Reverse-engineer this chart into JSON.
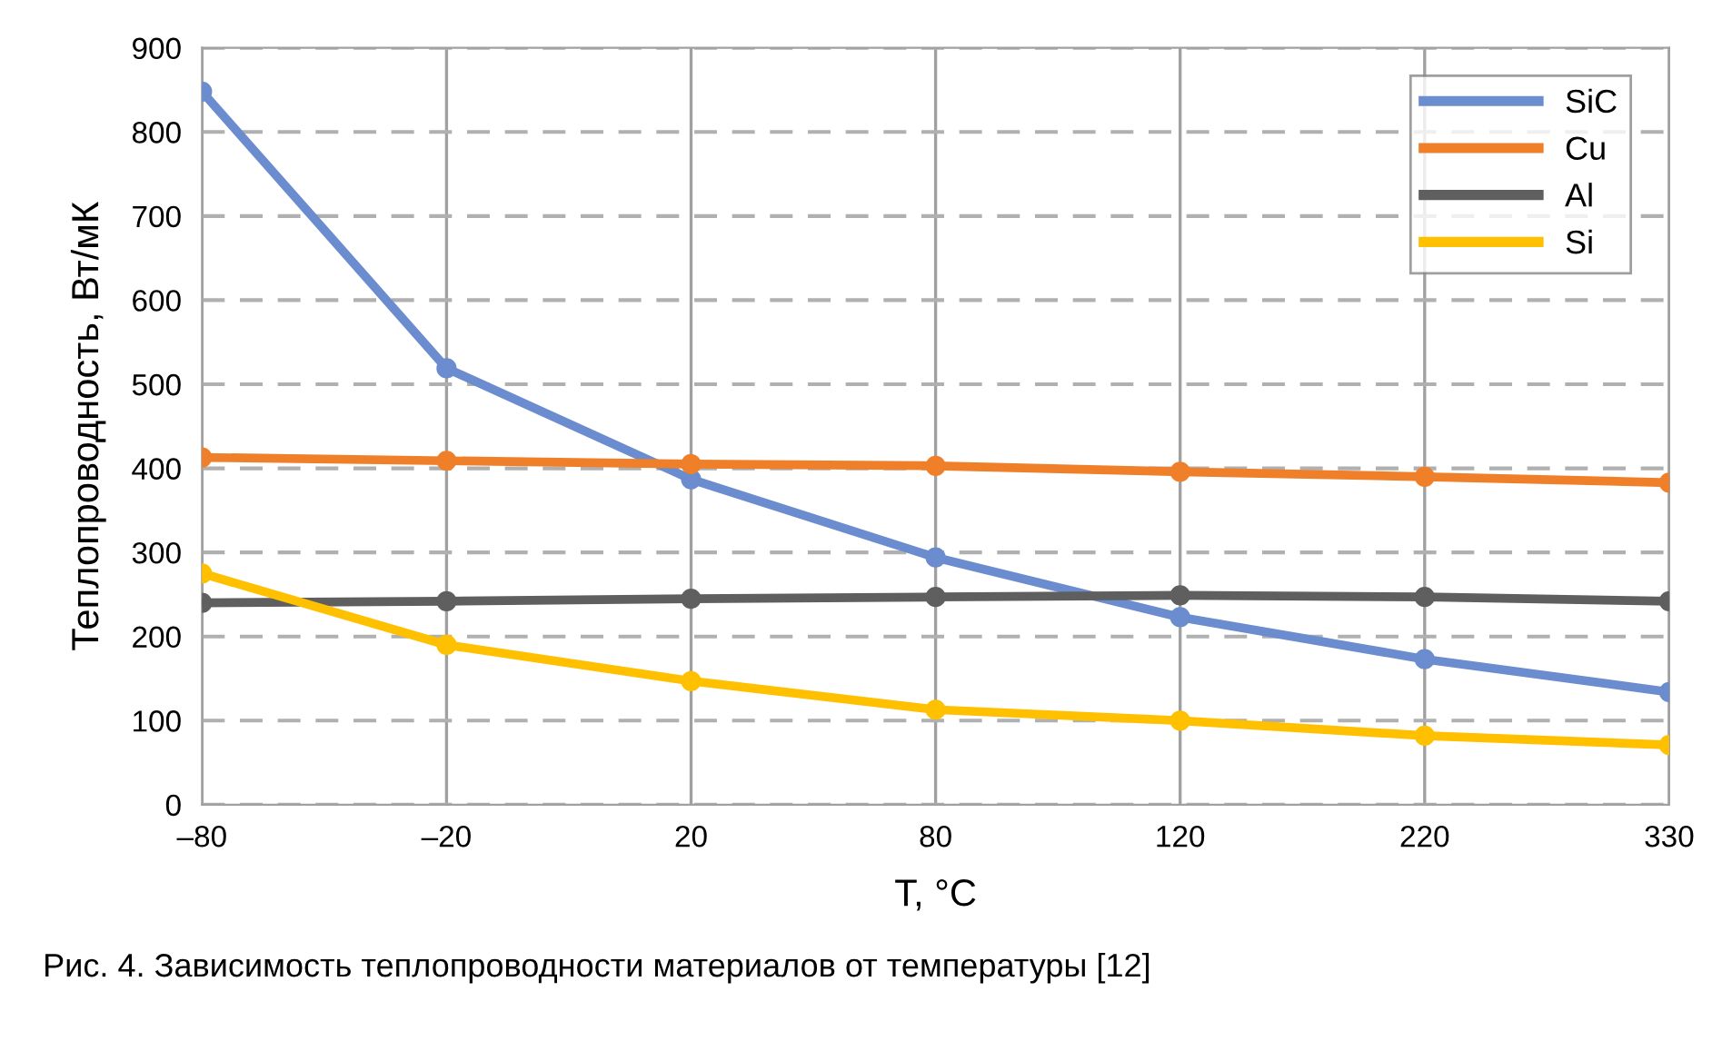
{
  "chart_data": {
    "type": "line",
    "xlabel": "T, °C",
    "ylabel": "Теплопроводность, Вт/мК",
    "categories": [
      "–80",
      "–20",
      "20",
      "80",
      "120",
      "220",
      "330"
    ],
    "series": [
      {
        "name": "SiC",
        "color": "#6b8cce",
        "values": [
          848,
          519,
          387,
          294,
          223,
          173,
          134
        ]
      },
      {
        "name": "Cu",
        "color": "#f07f2a",
        "values": [
          413,
          409,
          405,
          403,
          396,
          390,
          383
        ]
      },
      {
        "name": "Al",
        "color": "#5f5f5f",
        "values": [
          240,
          242,
          245,
          247,
          249,
          247,
          242
        ]
      },
      {
        "name": "Si",
        "color": "#ffc000",
        "values": [
          275,
          190,
          147,
          113,
          100,
          82,
          71
        ]
      }
    ],
    "ylim": [
      0,
      900
    ],
    "yticks": [
      0,
      100,
      200,
      300,
      400,
      500,
      600,
      700,
      800,
      900
    ],
    "grid": true,
    "legend": "top right",
    "marker": "circle",
    "line_style": "solid",
    "annotations": [
      "Рис. 4. Зависимость теплопроводности материалов от температуры [12]"
    ]
  }
}
